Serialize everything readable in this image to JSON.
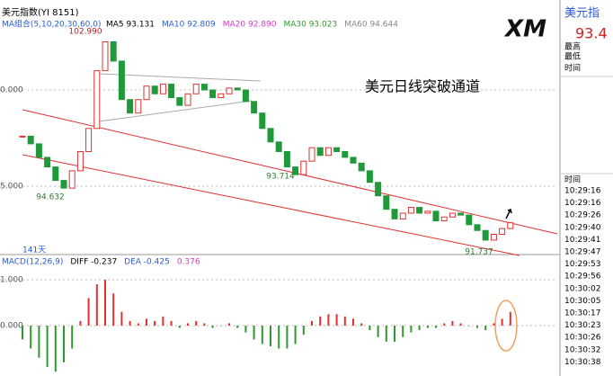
{
  "header": {
    "symbol": "美元指数(YI 8151)",
    "logo": "XM"
  },
  "ma_legend": {
    "label": "MA组合(5,10,20,30,60,0)",
    "items": [
      {
        "text": "MA5 93.131",
        "color": "#000000"
      },
      {
        "text": "MA10 92.809",
        "color": "#2a5cd6"
      },
      {
        "text": "MA20 92.890",
        "color": "#d63ac8"
      },
      {
        "text": "MA30 93.023",
        "color": "#2e9a2e"
      },
      {
        "text": "MA60 94.644",
        "color": "#888888"
      }
    ]
  },
  "price_axis": {
    "labels": [
      "0.000",
      "5.000"
    ]
  },
  "annotations": {
    "title": "美元日线突破通道",
    "high": "102.990",
    "low1": "94.632",
    "low2": "93.714",
    "low3": "91.737",
    "period": "141天"
  },
  "candles": {
    "closes": [
      97.6,
      97.2,
      96.5,
      96.0,
      95.3,
      94.9,
      95.8,
      96.8,
      98.0,
      101.0,
      102.5,
      101.5,
      99.5,
      98.8,
      99.5,
      100.2,
      99.8,
      100.3,
      99.6,
      99.2,
      99.8,
      100.3,
      100.0,
      99.6,
      99.8,
      100.1,
      100.0,
      99.4,
      98.8,
      98.0,
      97.3,
      96.8,
      96.0,
      95.6,
      96.3,
      97.0,
      96.6,
      97.0,
      96.8,
      96.5,
      96.2,
      95.8,
      95.2,
      94.5,
      93.8,
      93.3,
      93.6,
      93.9,
      93.6,
      93.7,
      93.2,
      93.4,
      93.6,
      93.5,
      93.0,
      92.7,
      92.2,
      92.5,
      92.8,
      93.1
    ]
  },
  "macd": {
    "legend": [
      "MACD(12,26,9)",
      "DIFF -0.237",
      "DEA -0.425",
      "0.376"
    ],
    "axis_labels": [
      "1.000",
      "0.000"
    ],
    "hist": [
      -0.3,
      -0.5,
      -0.7,
      -0.9,
      -1.0,
      -0.8,
      -0.5,
      0.1,
      0.6,
      0.9,
      1.0,
      0.7,
      0.3,
      0.1,
      0.05,
      0.15,
      0.1,
      0.2,
      0.1,
      -0.05,
      0.05,
      0.1,
      0.05,
      -0.05,
      0,
      0.05,
      -0.05,
      -0.15,
      -0.3,
      -0.4,
      -0.45,
      -0.5,
      -0.5,
      -0.4,
      -0.2,
      0.1,
      0.2,
      0.25,
      0.25,
      0.2,
      0.15,
      0.05,
      -0.1,
      -0.25,
      -0.35,
      -0.35,
      -0.25,
      -0.15,
      -0.1,
      -0.05,
      -0.05,
      0.05,
      0.1,
      0.05,
      0,
      -0.05,
      -0.1,
      0.05,
      0.15,
      0.3
    ]
  },
  "quote_panel": {
    "name": "美元指",
    "price": "93.4",
    "high_label": "最高",
    "low_label": "最低",
    "time_label": "时间",
    "trades_label": "时间",
    "times": [
      "10:29:16",
      "10:29:16",
      "10:29:26",
      "10:29:40",
      "10:29:41",
      "10:29:47",
      "10:29:53",
      "10:29:56",
      "10:30:02",
      "10:30:05",
      "10:30:17",
      "10:30:23",
      "10:30:26",
      "10:30:32",
      "10:30:38"
    ]
  }
}
